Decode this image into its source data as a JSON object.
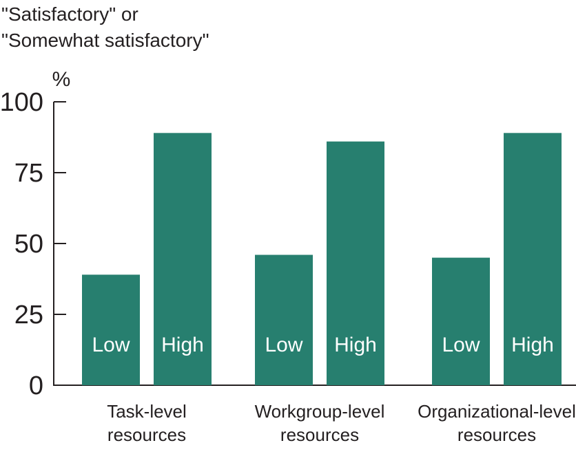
{
  "chart_data": {
    "type": "bar",
    "ylabel_lines": [
      "\"Satisfactory\" or",
      "\"Somewhat satisfactory\""
    ],
    "unit": "%",
    "ylim": [
      0,
      100
    ],
    "yticks": [
      "0",
      "25",
      "50",
      "75",
      "100"
    ],
    "bar_color": "#277f6f",
    "groups": [
      {
        "label_lines": [
          "Task-level",
          "resources"
        ],
        "bars": [
          {
            "label": "Low",
            "value": 39
          },
          {
            "label": "High",
            "value": 89
          }
        ]
      },
      {
        "label_lines": [
          "Workgroup-level",
          "resources"
        ],
        "bars": [
          {
            "label": "Low",
            "value": 46
          },
          {
            "label": "High",
            "value": 86
          }
        ]
      },
      {
        "label_lines": [
          "Organizational-level",
          "resources"
        ],
        "bars": [
          {
            "label": "Low",
            "value": 45
          },
          {
            "label": "High",
            "value": 89
          }
        ]
      }
    ]
  }
}
